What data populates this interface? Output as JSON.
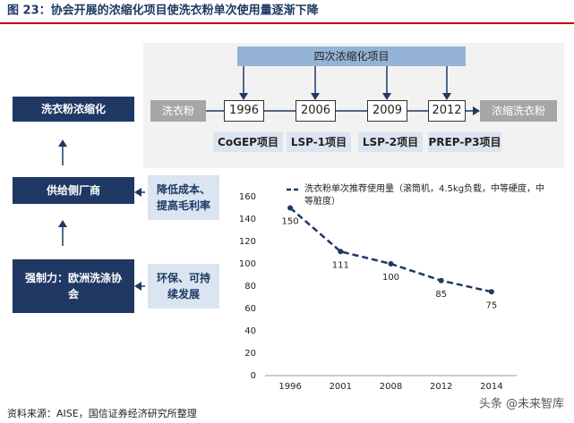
{
  "header": {
    "title": "图 23：协会开展的浓缩化项目使洗衣粉单次使用量逐渐下降"
  },
  "diagram": {
    "left": [
      "洗衣粉浓缩化",
      "供给侧厂商",
      "强制力：欧洲洗涤协会"
    ],
    "drivers": [
      "降低成本、提高毛利率",
      "环保、可持续发展"
    ],
    "program": "四次浓缩化项目",
    "start": "洗衣粉",
    "end": "浓缩洗衣粉",
    "years": [
      "1996",
      "2006",
      "2009",
      "2012"
    ],
    "projects": [
      "CoGEP项目",
      "LSP-1项目",
      "LSP-2项目",
      "PREP-P3项目"
    ]
  },
  "chart_data": {
    "type": "line",
    "categories": [
      "1996",
      "2001",
      "2008",
      "2012",
      "2014"
    ],
    "series": [
      {
        "name": "洗衣粉单次推荐使用量（滚筒机，4.5kg负载，中等硬度，中等脏度）",
        "color": "#1f3864",
        "values": [
          150,
          111,
          100,
          85,
          75
        ]
      }
    ],
    "ylim": [
      0,
      160
    ],
    "yticks": [
      0,
      20,
      40,
      60,
      80,
      100,
      120,
      140,
      160
    ],
    "grid": false
  },
  "footer": {
    "source": "资料来源：AISE，国信证券经济研究所整理",
    "watermark": "头条 @未来智库"
  }
}
